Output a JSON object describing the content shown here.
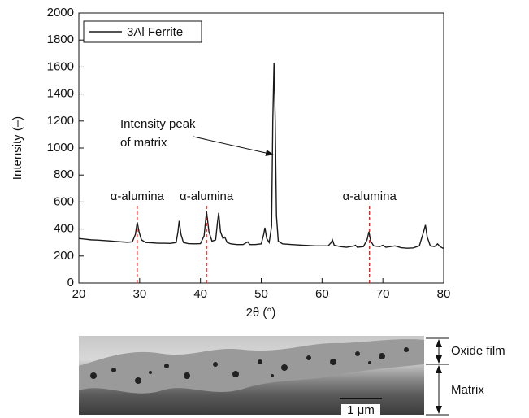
{
  "chart_data": {
    "type": "line",
    "xlabel": "2θ (°)",
    "ylabel": "Intensity (–)",
    "xlim": [
      20,
      80
    ],
    "xticks": [
      20,
      30,
      40,
      50,
      60,
      70,
      80
    ],
    "ylim": [
      0,
      2000
    ],
    "yticks": [
      0,
      200,
      400,
      600,
      800,
      1000,
      1200,
      1400,
      1600,
      1800,
      2000
    ],
    "grid": false,
    "legend": "upper left",
    "x": [
      20,
      21,
      22,
      23,
      24,
      25,
      26,
      27,
      28,
      28.8,
      29.3,
      29.6,
      29.9,
      30.3,
      31,
      32,
      33,
      34,
      35,
      36,
      36.3,
      36.5,
      36.8,
      37.2,
      38,
      39,
      40,
      40.6,
      41,
      41.4,
      41.9,
      42.5,
      42.8,
      43,
      43.3,
      43.7,
      44,
      44.4,
      45,
      46,
      47,
      47.6,
      47.8,
      48.1,
      49,
      50,
      50.4,
      50.6,
      50.9,
      51.3,
      51.7,
      51.9,
      52.1,
      52.3,
      52.5,
      52.8,
      53.5,
      55,
      57,
      59,
      61,
      61.5,
      61.7,
      62,
      63,
      64,
      65.3,
      65.5,
      65.8,
      66.8,
      67.4,
      67.7,
      68,
      68.5,
      69.5,
      70,
      70.5,
      72,
      73,
      74,
      75,
      76,
      76.7,
      77,
      77.3,
      77.8,
      78.5,
      79,
      79.4,
      80
    ],
    "series": [
      {
        "name": "3Al Ferrite",
        "color": "#1a1a1a",
        "values": [
          330,
          325,
          320,
          318,
          315,
          312,
          308,
          305,
          302,
          305,
          360,
          450,
          380,
          320,
          300,
          298,
          295,
          295,
          293,
          300,
          380,
          460,
          360,
          300,
          292,
          290,
          292,
          350,
          530,
          380,
          310,
          320,
          450,
          520,
          380,
          330,
          340,
          300,
          290,
          285,
          285,
          300,
          305,
          285,
          285,
          290,
          360,
          410,
          330,
          300,
          420,
          1200,
          1630,
          1200,
          500,
          310,
          290,
          285,
          280,
          275,
          275,
          300,
          320,
          280,
          270,
          265,
          275,
          280,
          265,
          270,
          320,
          380,
          310,
          275,
          270,
          280,
          265,
          275,
          262,
          258,
          260,
          275,
          380,
          430,
          340,
          275,
          270,
          290,
          270,
          255
        ]
      }
    ],
    "markers": [
      {
        "text": "α-alumina",
        "x": 29.6
      },
      {
        "text": "α-alumina",
        "x": 41
      },
      {
        "text": "α-alumina",
        "x": 67.8
      }
    ],
    "annotation": [
      "Intensity peak",
      "of matrix"
    ]
  },
  "micrograph": {
    "oxide_label": "Oxide film",
    "matrix_label": "Matrix",
    "scale_label": "1 μm"
  }
}
